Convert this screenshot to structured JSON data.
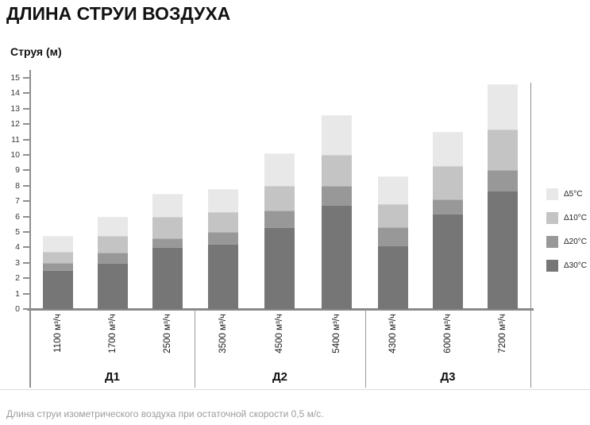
{
  "title": "ДЛИНА СТРУИ ВОЗДУХА",
  "footnote": "Длина струи изометрического воздуха при остаточной скорости 0,5 м/с.",
  "chart_data": {
    "type": "bar",
    "stacked": true,
    "title": "ДЛИНА СТРУИ ВОЗДУХА",
    "ylabel": "Струя (м)",
    "xlabel": "",
    "ylim": [
      0,
      15
    ],
    "ytick_step": 1,
    "grid": false,
    "legend_position": "right",
    "series_bottom_to_top": [
      {
        "name": "Δ30°C",
        "color": "#767676"
      },
      {
        "name": "Δ20°C",
        "color": "#989898"
      },
      {
        "name": "Δ10°C",
        "color": "#c4c4c4"
      },
      {
        "name": "Δ5°C",
        "color": "#e8e8e8"
      }
    ],
    "legend_top_to_bottom": [
      "Δ5°C",
      "Δ10°C",
      "Δ20°C",
      "Δ30°C"
    ],
    "groups": [
      {
        "name": "Д1",
        "bars": [
          {
            "label": "1100 м³/ч",
            "cumulative_m": [
              2.5,
              3.0,
              3.7,
              4.75
            ]
          },
          {
            "label": "1700 м³/ч",
            "cumulative_m": [
              3.0,
              3.65,
              4.75,
              6.0
            ]
          },
          {
            "label": "2500 м³/ч",
            "cumulative_m": [
              4.0,
              4.6,
              6.0,
              7.5
            ]
          }
        ]
      },
      {
        "name": "Д2",
        "bars": [
          {
            "label": "3500 м³/ч",
            "cumulative_m": [
              4.25,
              5.0,
              6.3,
              7.8
            ]
          },
          {
            "label": "4500 м³/ч",
            "cumulative_m": [
              5.3,
              6.4,
              8.0,
              10.1
            ]
          },
          {
            "label": "5400 м³/ч",
            "cumulative_m": [
              6.75,
              8.0,
              10.0,
              12.6
            ]
          }
        ]
      },
      {
        "name": "Д3",
        "bars": [
          {
            "label": "4300 м³/ч",
            "cumulative_m": [
              4.1,
              5.3,
              6.8,
              8.6
            ]
          },
          {
            "label": "6000 м³/ч",
            "cumulative_m": [
              6.2,
              7.1,
              9.3,
              11.5
            ]
          },
          {
            "label": "7200 м³/ч",
            "cumulative_m": [
              7.7,
              9.0,
              11.65,
              14.6
            ]
          }
        ]
      }
    ]
  }
}
